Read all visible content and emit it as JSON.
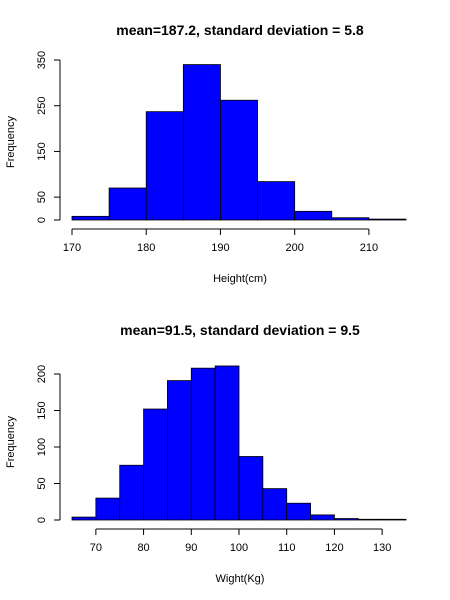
{
  "chart_data": [
    {
      "type": "bar",
      "title": "mean=187.2, standard deviation = 5.8",
      "xlabel": "Height(cm)",
      "ylabel": "Frequency",
      "bar_color": "#0000ff",
      "bin_edges": [
        170,
        175,
        180,
        185,
        190,
        195,
        200,
        205,
        210,
        215
      ],
      "values": [
        8,
        70,
        237,
        340,
        262,
        84,
        19,
        5,
        2
      ],
      "xlim": [
        170,
        215
      ],
      "ylim": [
        0,
        350
      ],
      "x_ticks": [
        170,
        180,
        190,
        200,
        210
      ],
      "y_ticks": [
        0,
        50,
        150,
        250,
        350
      ],
      "grid": false
    },
    {
      "type": "bar",
      "title": "mean=91.5, standard deviation = 9.5",
      "xlabel": "Wight(Kg)",
      "ylabel": "Frequency",
      "bar_color": "#0000ff",
      "bin_edges": [
        65,
        70,
        75,
        80,
        85,
        90,
        95,
        100,
        105,
        110,
        115,
        120,
        125,
        130,
        135
      ],
      "values": [
        4,
        30,
        75,
        152,
        191,
        208,
        211,
        87,
        43,
        23,
        7,
        2,
        1,
        1
      ],
      "xlim": [
        65,
        135
      ],
      "ylim": [
        0,
        200
      ],
      "x_ticks": [
        70,
        80,
        90,
        100,
        110,
        120,
        130
      ],
      "y_ticks": [
        0,
        50,
        100,
        150,
        200
      ],
      "grid": false
    }
  ]
}
